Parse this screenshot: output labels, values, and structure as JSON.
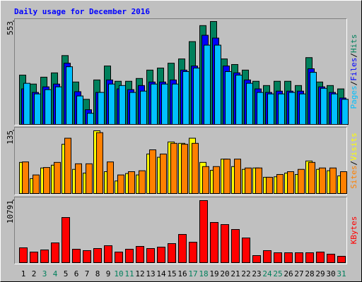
{
  "title": "Daily usage for December 2016",
  "legend_separator": "/",
  "chart_data": [
    {
      "type": "bar",
      "ylim": [
        0,
        553
      ],
      "yticks": [
        553
      ],
      "series": [
        {
          "name": "Hits",
          "color": "#00805c",
          "values": [
            265,
            217,
            254,
            277,
            370,
            228,
            135,
            239,
            314,
            232,
            232,
            247,
            292,
            303,
            329,
            352,
            445,
            531,
            553,
            352,
            322,
            292,
            232,
            209,
            232,
            232,
            209,
            359,
            228,
            209,
            191
          ]
        },
        {
          "name": "Files",
          "color": "#0000ff",
          "values": [
            191,
            172,
            202,
            217,
            329,
            176,
            79,
            172,
            239,
            191,
            187,
            209,
            228,
            228,
            239,
            292,
            314,
            479,
            464,
            314,
            277,
            239,
            191,
            172,
            179,
            179,
            179,
            299,
            202,
            172,
            142
          ]
        },
        {
          "name": "Pages",
          "color": "#00c0ff",
          "values": [
            221,
            164,
            187,
            202,
            310,
            153,
            60,
            172,
            217,
            209,
            172,
            179,
            217,
            217,
            217,
            284,
            303,
            426,
            426,
            284,
            265,
            221,
            172,
            164,
            164,
            172,
            164,
            280,
            194,
            164,
            135
          ]
        }
      ]
    },
    {
      "type": "bar",
      "ylim": [
        0,
        135
      ],
      "yticks": [
        135
      ],
      "series": [
        {
          "name": "Visits",
          "color": "#ffff00",
          "values": [
            67,
            32,
            55,
            61,
            106,
            52,
            44,
            135,
            47,
            27,
            43,
            40,
            85,
            78,
            111,
            108,
            119,
            67,
            50,
            74,
            58,
            52,
            55,
            35,
            36,
            44,
            41,
            70,
            52,
            49,
            38
          ]
        },
        {
          "name": "Sites",
          "color": "#ff8000",
          "values": [
            68,
            40,
            56,
            67,
            119,
            64,
            64,
            131,
            68,
            40,
            47,
            49,
            94,
            85,
            108,
            106,
            108,
            58,
            58,
            74,
            74,
            55,
            55,
            35,
            41,
            47,
            52,
            67,
            55,
            55,
            47
          ]
        }
      ]
    },
    {
      "type": "bar",
      "ylim": [
        0,
        10791
      ],
      "yticks": [
        10791
      ],
      "categories": [
        "1",
        "2",
        "3",
        "4",
        "5",
        "6",
        "7",
        "8",
        "9",
        "10",
        "11",
        "12",
        "13",
        "14",
        "15",
        "16",
        "17",
        "18",
        "19",
        "20",
        "21",
        "22",
        "23",
        "24",
        "25",
        "26",
        "27",
        "28",
        "29",
        "30",
        "31"
      ],
      "category_colors": [
        "#000000",
        "#000000",
        "#00805c",
        "#00805c",
        "#000000",
        "#000000",
        "#000000",
        "#000000",
        "#000000",
        "#00805c",
        "#00805c",
        "#000000",
        "#000000",
        "#000000",
        "#000000",
        "#000000",
        "#00805c",
        "#00805c",
        "#000000",
        "#000000",
        "#000000",
        "#000000",
        "#000000",
        "#00805c",
        "#00805c",
        "#000000",
        "#000000",
        "#000000",
        "#000000",
        "#000000",
        "#00805c"
      ],
      "series": [
        {
          "name": "KBytes",
          "color": "#ff0000",
          "values": [
            2575,
            1839,
            2207,
            3433,
            7847,
            2330,
            2084,
            2452,
            2943,
            1839,
            2330,
            2820,
            2452,
            2697,
            3310,
            4904,
            3555,
            10791,
            6988,
            6621,
            5762,
            4291,
            1226,
            2084,
            1716,
            1716,
            1716,
            1716,
            1839,
            1471,
            1103
          ]
        }
      ]
    }
  ]
}
